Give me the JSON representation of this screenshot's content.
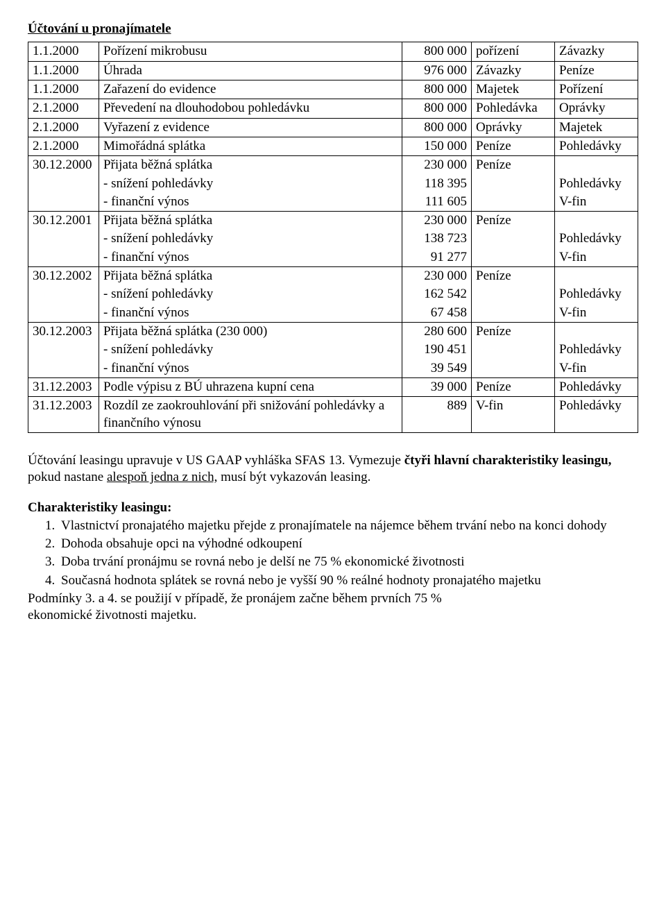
{
  "title": "Účtování u pronajímatele",
  "table": {
    "cols": [
      "date-col",
      "desc-col",
      "amt-col",
      "acc-col",
      "acc-col"
    ],
    "rows": [
      {
        "cells": [
          {
            "t": "1.1.2000"
          },
          {
            "t": "Pořízení mikrobusu"
          },
          {
            "t": "800 000",
            "c": "num"
          },
          {
            "t": "pořízení"
          },
          {
            "t": "Závazky"
          }
        ]
      },
      {
        "cells": [
          {
            "t": "1.1.2000"
          },
          {
            "t": "Úhrada"
          },
          {
            "t": "976 000",
            "c": "num"
          },
          {
            "t": "Závazky"
          },
          {
            "t": "Peníze"
          }
        ]
      },
      {
        "cells": [
          {
            "t": "1.1.2000"
          },
          {
            "t": "Zařazení do evidence"
          },
          {
            "t": "800 000",
            "c": "num"
          },
          {
            "t": "Majetek"
          },
          {
            "t": "Pořízení"
          }
        ]
      },
      {
        "cells": [
          {
            "t": "2.1.2000"
          },
          {
            "t": "Převedení na dlouhodobou pohledávku"
          },
          {
            "t": "800 000",
            "c": "num"
          },
          {
            "t": "Pohledávka"
          },
          {
            "t": "Oprávky"
          }
        ]
      },
      {
        "cells": [
          {
            "t": "2.1.2000"
          },
          {
            "t": "Vyřazení z evidence"
          },
          {
            "t": "800 000",
            "c": "num"
          },
          {
            "t": "Oprávky"
          },
          {
            "t": "Majetek"
          }
        ]
      },
      {
        "cells": [
          {
            "t": "2.1.2000"
          },
          {
            "t": "Mimořádná splátka"
          },
          {
            "t": "150 000",
            "c": "num"
          },
          {
            "t": "Peníze"
          },
          {
            "t": "Pohledávky"
          }
        ]
      },
      {
        "group": true,
        "first": [
          {
            "t": "30.12.2000"
          },
          {
            "t": "Přijata běžná splátka"
          },
          {
            "t": "230 000",
            "c": "num"
          },
          {
            "t": "Peníze"
          },
          {
            "t": ""
          }
        ],
        "mid": [
          [
            {
              "t": ""
            },
            {
              "t": "- snížení pohledávky"
            },
            {
              "t": "118 395",
              "c": "num"
            },
            {
              "t": ""
            },
            {
              "t": "Pohledávky"
            }
          ]
        ],
        "last": [
          {
            "t": ""
          },
          {
            "t": "- finanční výnos"
          },
          {
            "t": "111 605",
            "c": "num"
          },
          {
            "t": ""
          },
          {
            "t": "V-fin"
          }
        ]
      },
      {
        "group": true,
        "first": [
          {
            "t": "30.12.2001"
          },
          {
            "t": "Přijata běžná splátka"
          },
          {
            "t": "230 000",
            "c": "num"
          },
          {
            "t": "Peníze"
          },
          {
            "t": ""
          }
        ],
        "mid": [
          [
            {
              "t": ""
            },
            {
              "t": "- snížení pohledávky"
            },
            {
              "t": "138 723",
              "c": "num"
            },
            {
              "t": ""
            },
            {
              "t": "Pohledávky"
            }
          ]
        ],
        "last": [
          {
            "t": ""
          },
          {
            "t": "- finanční výnos"
          },
          {
            "t": "91 277",
            "c": "num"
          },
          {
            "t": ""
          },
          {
            "t": "V-fin"
          }
        ]
      },
      {
        "group": true,
        "first": [
          {
            "t": "30.12.2002"
          },
          {
            "t": "Přijata běžná splátka"
          },
          {
            "t": "230 000",
            "c": "num"
          },
          {
            "t": "Peníze"
          },
          {
            "t": ""
          }
        ],
        "mid": [
          [
            {
              "t": ""
            },
            {
              "t": "- snížení pohledávky"
            },
            {
              "t": "162 542",
              "c": "num"
            },
            {
              "t": ""
            },
            {
              "t": "Pohledávky"
            }
          ]
        ],
        "last": [
          {
            "t": ""
          },
          {
            "t": "- finanční výnos"
          },
          {
            "t": "67 458",
            "c": "num"
          },
          {
            "t": ""
          },
          {
            "t": "V-fin"
          }
        ]
      },
      {
        "group": true,
        "first": [
          {
            "t": "30.12.2003"
          },
          {
            "t": "Přijata běžná splátka (230 000)"
          },
          {
            "t": "280 600",
            "c": "num"
          },
          {
            "t": "Peníze"
          },
          {
            "t": ""
          }
        ],
        "mid": [
          [
            {
              "t": ""
            },
            {
              "t": "- snížení pohledávky"
            },
            {
              "t": "190 451",
              "c": "num"
            },
            {
              "t": ""
            },
            {
              "t": "Pohledávky"
            }
          ]
        ],
        "last": [
          {
            "t": ""
          },
          {
            "t": "- finanční výnos"
          },
          {
            "t": "39 549",
            "c": "num"
          },
          {
            "t": ""
          },
          {
            "t": "V-fin"
          }
        ]
      },
      {
        "cells": [
          {
            "t": "31.12.2003"
          },
          {
            "t": "Podle výpisu z BÚ uhrazena kupní cena"
          },
          {
            "t": "39 000",
            "c": "num"
          },
          {
            "t": "Peníze"
          },
          {
            "t": "Pohledávky"
          }
        ]
      },
      {
        "cells": [
          {
            "t": "31.12.2003"
          },
          {
            "t": "Rozdíl ze zaokrouhlování při snižování pohledávky a finančního výnosu"
          },
          {
            "t": "889",
            "c": "num"
          },
          {
            "t": "V-fin"
          },
          {
            "t": "Pohledávky"
          }
        ]
      }
    ]
  },
  "para1_pre": "Účtování leasingu upravuje v US GAAP vyhláška SFAS 13. Vymezuje ",
  "para1_bold": "čtyři hlavní charakteristiky leasingu,",
  "para1_mid": " pokud nastane ",
  "para1_under": "alespoň jedna z nich,",
  "para1_post": " musí být vykazován leasing.",
  "char_title": "Charakteristiky leasingu:",
  "char_items": [
    "Vlastnictví pronajatého majetku přejde z pronajímatele na nájemce během trvání nebo na konci dohody",
    "Dohoda obsahuje opci na výhodné odkoupení",
    "Doba trvání pronájmu se rovná nebo je delší ne 75 % ekonomické životnosti",
    "Současná hodnota splátek se rovná nebo je vyšší  90 % reálné hodnoty pronajatého majetku"
  ],
  "cond_line1": "Podmínky 3. a 4. se použijí v případě, že pronájem začne během prvních 75 %",
  "cond_line2": "ekonomické životnosti majetku."
}
